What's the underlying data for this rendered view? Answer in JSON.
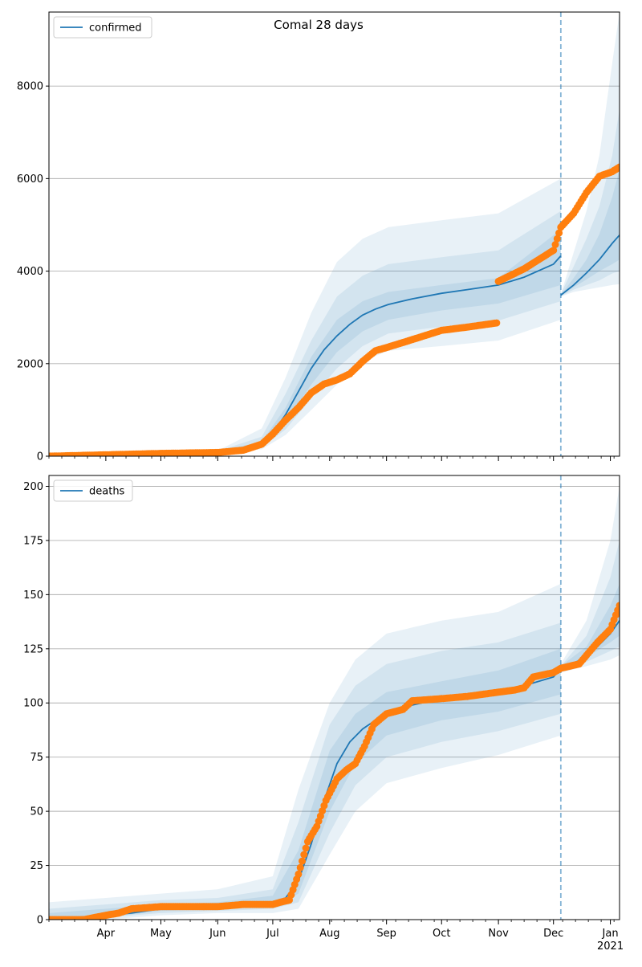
{
  "figure": {
    "title": "Comal 28 days"
  },
  "colors": {
    "model": "#1f77b4",
    "observed": "#ff7f0e",
    "grid": "#b0b0b0",
    "band": "#1f77b4"
  },
  "chart_data": [
    {
      "type": "line",
      "legend": [
        "confirmed"
      ],
      "legend_position": "top-left",
      "grid": "y",
      "xlim": [
        "2020-03-01",
        "2021-01-06"
      ],
      "ylim": [
        0,
        9600
      ],
      "yticks": [
        0,
        2000,
        4000,
        6000,
        8000
      ],
      "xtick_labels": [],
      "forecast_start": "2020-12-05",
      "series": [
        {
          "name": "confirmed",
          "kind": "model-line",
          "x": [
            "2020-03-01",
            "2020-04-01",
            "2020-05-01",
            "2020-06-01",
            "2020-06-15",
            "2020-06-25",
            "2020-07-01",
            "2020-07-08",
            "2020-07-15",
            "2020-07-22",
            "2020-07-29",
            "2020-08-05",
            "2020-08-12",
            "2020-08-19",
            "2020-08-26",
            "2020-09-02",
            "2020-09-15",
            "2020-10-01",
            "2020-10-15",
            "2020-11-01",
            "2020-11-15",
            "2020-12-01",
            "2020-12-05",
            "2020-12-05",
            "2020-12-12",
            "2020-12-19",
            "2020-12-26",
            "2021-01-02",
            "2021-01-06"
          ],
          "y": [
            0,
            20,
            50,
            90,
            150,
            260,
            500,
            900,
            1400,
            1900,
            2300,
            2600,
            2850,
            3050,
            3180,
            3280,
            3400,
            3520,
            3600,
            3700,
            3870,
            4150,
            4330,
            3480,
            3700,
            3960,
            4250,
            4600,
            4780
          ]
        },
        {
          "name": "",
          "kind": "observed",
          "x": [
            "2020-03-01",
            "2020-04-01",
            "2020-05-01",
            "2020-06-01",
            "2020-06-15",
            "2020-06-25",
            "2020-07-01",
            "2020-07-08",
            "2020-07-15",
            "2020-07-22",
            "2020-07-29",
            "2020-08-05",
            "2020-08-12",
            "2020-08-19",
            "2020-08-26",
            "2020-09-02",
            "2020-09-15",
            "2020-10-01",
            "2020-10-15",
            "2020-10-31",
            "2020-11-01",
            "2020-11-15",
            "2020-12-01",
            "2020-12-05",
            "2020-12-12",
            "2020-12-19",
            "2020-12-26",
            "2021-01-02",
            "2021-01-06"
          ],
          "y": [
            0,
            30,
            60,
            80,
            130,
            260,
            480,
            780,
            1050,
            1370,
            1560,
            1650,
            1780,
            2050,
            2280,
            2360,
            2520,
            2720,
            2790,
            2880,
            3780,
            4050,
            4450,
            4950,
            5250,
            5700,
            6050,
            6150,
            6250
          ]
        }
      ],
      "bands": [
        {
          "level": 1,
          "x": [
            "2020-03-01",
            "2020-06-01",
            "2020-06-25",
            "2020-07-08",
            "2020-07-22",
            "2020-08-05",
            "2020-08-19",
            "2020-09-02",
            "2020-10-01",
            "2020-11-01",
            "2020-12-05"
          ],
          "lower": [
            0,
            60,
            150,
            460,
            1000,
            1550,
            2050,
            2280,
            2380,
            2500,
            2950
          ],
          "upper": [
            0,
            120,
            600,
            1700,
            3100,
            4200,
            4700,
            4950,
            5100,
            5250,
            6000
          ]
        },
        {
          "level": 2,
          "x": [
            "2020-03-01",
            "2020-06-01",
            "2020-06-25",
            "2020-07-08",
            "2020-07-22",
            "2020-08-05",
            "2020-08-19",
            "2020-09-02",
            "2020-10-01",
            "2020-11-01",
            "2020-12-05"
          ],
          "lower": [
            0,
            70,
            190,
            580,
            1250,
            1900,
            2380,
            2650,
            2800,
            2930,
            3350
          ],
          "upper": [
            0,
            110,
            420,
            1350,
            2500,
            3450,
            3900,
            4150,
            4300,
            4450,
            5300
          ]
        },
        {
          "level": 3,
          "x": [
            "2020-03-01",
            "2020-06-01",
            "2020-06-25",
            "2020-07-08",
            "2020-07-22",
            "2020-08-05",
            "2020-08-19",
            "2020-09-02",
            "2020-10-01",
            "2020-11-01",
            "2020-12-05"
          ],
          "lower": [
            0,
            80,
            220,
            720,
            1550,
            2250,
            2700,
            2950,
            3150,
            3300,
            3700
          ],
          "upper": [
            0,
            100,
            320,
            1050,
            2150,
            2950,
            3350,
            3550,
            3700,
            3850,
            4900
          ]
        },
        {
          "level": 1,
          "x": [
            "2020-12-05",
            "2020-12-12",
            "2020-12-19",
            "2020-12-26",
            "2021-01-02",
            "2021-01-06"
          ],
          "lower": [
            3450,
            3550,
            3600,
            3650,
            3700,
            3720
          ],
          "upper": [
            3500,
            4400,
            5300,
            6500,
            8500,
            9600
          ]
        },
        {
          "level": 2,
          "x": [
            "2020-12-05",
            "2020-12-12",
            "2020-12-19",
            "2020-12-26",
            "2021-01-02",
            "2021-01-06"
          ],
          "lower": [
            3460,
            3600,
            3700,
            3800,
            3950,
            4000
          ],
          "upper": [
            3500,
            4100,
            4700,
            5400,
            6500,
            7500
          ]
        },
        {
          "level": 3,
          "x": [
            "2020-12-05",
            "2020-12-12",
            "2020-12-19",
            "2020-12-26",
            "2021-01-02",
            "2021-01-06"
          ],
          "lower": [
            3470,
            3650,
            3820,
            4000,
            4150,
            4250
          ],
          "upper": [
            3490,
            3850,
            4250,
            4800,
            5600,
            6200
          ]
        }
      ]
    },
    {
      "type": "line",
      "legend": [
        "deaths"
      ],
      "legend_position": "top-left",
      "grid": "y",
      "xlim": [
        "2020-03-01",
        "2021-01-06"
      ],
      "ylim": [
        0,
        205
      ],
      "yticks": [
        0,
        25,
        50,
        75,
        100,
        125,
        150,
        175,
        200
      ],
      "xtick_labels": [
        "Apr",
        "May",
        "Jun",
        "Jul",
        "Aug",
        "Sep",
        "Oct",
        "Nov",
        "Dec",
        "Jan\n2021"
      ],
      "xtick_dates": [
        "2020-04-01",
        "2020-05-01",
        "2020-06-01",
        "2020-07-01",
        "2020-08-01",
        "2020-09-01",
        "2020-10-01",
        "2020-11-01",
        "2020-12-01",
        "2021-01-01"
      ],
      "forecast_start": "2020-12-05",
      "series": [
        {
          "name": "deaths",
          "kind": "model-line",
          "x": [
            "2020-03-01",
            "2020-03-15",
            "2020-04-01",
            "2020-04-15",
            "2020-05-01",
            "2020-06-01",
            "2020-06-20",
            "2020-07-01",
            "2020-07-08",
            "2020-07-15",
            "2020-07-22",
            "2020-07-29",
            "2020-08-05",
            "2020-08-12",
            "2020-08-19",
            "2020-08-26",
            "2020-09-02",
            "2020-09-15",
            "2020-10-01",
            "2020-10-15",
            "2020-11-01",
            "2020-11-15",
            "2020-12-01",
            "2020-12-05",
            "2020-12-19",
            "2021-01-01",
            "2021-01-06"
          ],
          "y": [
            0,
            1,
            2,
            3,
            5,
            6,
            7,
            8,
            10,
            18,
            35,
            55,
            72,
            82,
            88,
            92,
            95,
            99,
            102,
            104,
            106,
            108,
            112,
            116,
            121,
            132,
            138
          ]
        },
        {
          "name": "",
          "kind": "observed",
          "x": [
            "2020-03-01",
            "2020-03-20",
            "2020-04-01",
            "2020-04-08",
            "2020-04-15",
            "2020-05-01",
            "2020-06-01",
            "2020-06-15",
            "2020-07-01",
            "2020-07-05",
            "2020-07-10",
            "2020-07-15",
            "2020-07-20",
            "2020-07-25",
            "2020-07-30",
            "2020-08-05",
            "2020-08-10",
            "2020-08-15",
            "2020-08-20",
            "2020-08-25",
            "2020-09-01",
            "2020-09-10",
            "2020-09-15",
            "2020-10-01",
            "2020-10-15",
            "2020-11-01",
            "2020-11-10",
            "2020-11-15",
            "2020-11-20",
            "2020-12-01",
            "2020-12-05",
            "2020-12-15",
            "2020-12-25",
            "2021-01-01",
            "2021-01-06"
          ],
          "y": [
            0,
            0,
            2,
            3,
            5,
            6,
            6,
            7,
            7,
            8,
            9,
            21,
            36,
            43,
            55,
            65,
            69,
            72,
            80,
            90,
            95,
            97,
            101,
            102,
            103,
            105,
            106,
            107,
            112,
            114,
            116,
            118,
            128,
            134,
            145
          ]
        }
      ],
      "bands": [
        {
          "level": 1,
          "x": [
            "2020-03-01",
            "2020-04-01",
            "2020-05-01",
            "2020-06-01",
            "2020-07-01",
            "2020-07-15",
            "2020-08-01",
            "2020-08-15",
            "2020-09-01",
            "2020-10-01",
            "2020-11-01",
            "2020-12-05"
          ],
          "lower": [
            0,
            0,
            2,
            3,
            3,
            5,
            30,
            50,
            63,
            70,
            76,
            85
          ],
          "upper": [
            8,
            10,
            12,
            14,
            20,
            60,
            100,
            120,
            132,
            138,
            142,
            155
          ]
        },
        {
          "level": 2,
          "x": [
            "2020-03-01",
            "2020-04-01",
            "2020-05-01",
            "2020-06-01",
            "2020-07-01",
            "2020-07-15",
            "2020-08-01",
            "2020-08-15",
            "2020-09-01",
            "2020-10-01",
            "2020-11-01",
            "2020-12-05"
          ],
          "lower": [
            0,
            1,
            3,
            4,
            5,
            8,
            40,
            62,
            75,
            82,
            87,
            95
          ],
          "upper": [
            5,
            7,
            9,
            10,
            14,
            45,
            90,
            108,
            118,
            124,
            128,
            137
          ]
        },
        {
          "level": 3,
          "x": [
            "2020-03-01",
            "2020-04-01",
            "2020-05-01",
            "2020-06-01",
            "2020-07-01",
            "2020-07-15",
            "2020-08-01",
            "2020-08-15",
            "2020-09-01",
            "2020-10-01",
            "2020-11-01",
            "2020-12-05"
          ],
          "lower": [
            0,
            1,
            4,
            5,
            6,
            12,
            50,
            72,
            85,
            92,
            96,
            104
          ],
          "upper": [
            3,
            5,
            7,
            8,
            11,
            32,
            78,
            95,
            105,
            110,
            115,
            125
          ]
        },
        {
          "level": 1,
          "x": [
            "2020-12-05",
            "2020-12-19",
            "2021-01-01",
            "2021-01-06"
          ],
          "lower": [
            114,
            117,
            120,
            122
          ],
          "upper": [
            118,
            138,
            175,
            200
          ]
        },
        {
          "level": 2,
          "x": [
            "2020-12-05",
            "2020-12-19",
            "2021-01-01",
            "2021-01-06"
          ],
          "lower": [
            115,
            119,
            124,
            126
          ],
          "upper": [
            117,
            131,
            158,
            175
          ]
        },
        {
          "level": 3,
          "x": [
            "2020-12-05",
            "2020-12-19",
            "2021-01-01",
            "2021-01-06"
          ],
          "lower": [
            116,
            121,
            128,
            131
          ],
          "upper": [
            117,
            126,
            145,
            155
          ]
        }
      ]
    }
  ]
}
